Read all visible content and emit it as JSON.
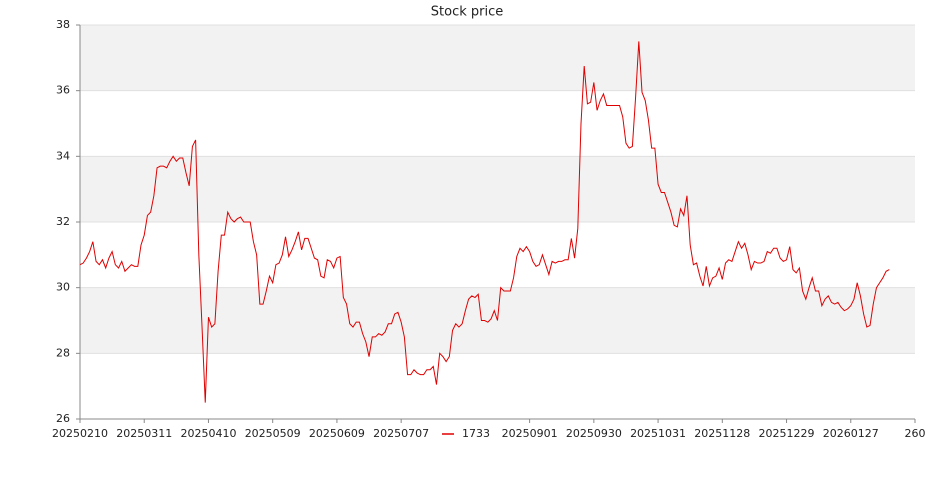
{
  "chart_data": {
    "type": "line",
    "title": "Stock price",
    "xlim": [
      0,
      260
    ],
    "xticks": [
      {
        "value": 0,
        "label": "20250210"
      },
      {
        "value": 20,
        "label": "20250311"
      },
      {
        "value": 40,
        "label": "20250410"
      },
      {
        "value": 60,
        "label": "20250509"
      },
      {
        "value": 80,
        "label": "20250609"
      },
      {
        "value": 100,
        "label": "20250707"
      },
      {
        "value": 140,
        "label": "20250901"
      },
      {
        "value": 160,
        "label": "20250930"
      },
      {
        "value": 180,
        "label": "20251031"
      },
      {
        "value": 200,
        "label": "20251128"
      },
      {
        "value": 220,
        "label": "20251229"
      },
      {
        "value": 240,
        "label": "20260127"
      },
      {
        "value": 260,
        "label": "260"
      }
    ],
    "ylim": [
      26,
      38
    ],
    "yticks": [
      26,
      28,
      30,
      32,
      34,
      36,
      38
    ],
    "grid": true,
    "legend": "bottom",
    "series": [
      {
        "name": "1733",
        "color": "#e00000",
        "values": [
          30.7,
          30.75,
          30.9,
          31.1,
          31.4,
          30.8,
          30.7,
          30.85,
          30.6,
          30.9,
          31.1,
          30.7,
          30.6,
          30.8,
          30.5,
          30.6,
          30.7,
          30.65,
          30.65,
          31.3,
          31.6,
          32.2,
          32.3,
          32.8,
          33.65,
          33.7,
          33.7,
          33.65,
          33.85,
          34.0,
          33.85,
          33.95,
          33.95,
          33.5,
          33.1,
          34.3,
          34.5,
          31.0,
          28.8,
          26.5,
          29.1,
          28.8,
          28.9,
          30.5,
          31.6,
          31.6,
          32.3,
          32.1,
          32.0,
          32.1,
          32.15,
          32.0,
          32.0,
          32.0,
          31.4,
          31.0,
          29.5,
          29.5,
          29.9,
          30.35,
          30.15,
          30.7,
          30.75,
          31.0,
          31.55,
          30.95,
          31.15,
          31.4,
          31.7,
          31.15,
          31.5,
          31.5,
          31.2,
          30.9,
          30.85,
          30.35,
          30.3,
          30.85,
          30.8,
          30.6,
          30.9,
          30.95,
          29.7,
          29.5,
          28.9,
          28.8,
          28.95,
          28.95,
          28.6,
          28.35,
          27.9,
          28.5,
          28.5,
          28.6,
          28.55,
          28.65,
          28.9,
          28.9,
          29.2,
          29.25,
          28.95,
          28.5,
          27.35,
          27.35,
          27.5,
          27.4,
          27.35,
          27.35,
          27.5,
          27.5,
          27.6,
          27.05,
          28.0,
          27.9,
          27.75,
          27.9,
          28.7,
          28.9,
          28.8,
          28.9,
          29.3,
          29.65,
          29.75,
          29.7,
          29.8,
          29.0,
          29.0,
          28.95,
          29.05,
          29.3,
          29.0,
          30.0,
          29.9,
          29.9,
          29.9,
          30.3,
          30.95,
          31.2,
          31.1,
          31.25,
          31.1,
          30.8,
          30.65,
          30.7,
          31.0,
          30.7,
          30.4,
          30.8,
          30.75,
          30.8,
          30.8,
          30.85,
          30.85,
          31.5,
          30.9,
          31.8,
          35.0,
          36.75,
          35.6,
          35.65,
          36.25,
          35.4,
          35.7,
          35.9,
          35.55,
          35.55,
          35.55,
          35.55,
          35.55,
          35.2,
          34.4,
          34.25,
          34.3,
          35.8,
          37.5,
          35.95,
          35.7,
          35.1,
          34.25,
          34.25,
          33.15,
          32.9,
          32.9,
          32.6,
          32.3,
          31.9,
          31.85,
          32.4,
          32.2,
          32.8,
          31.3,
          30.7,
          30.75,
          30.35,
          30.05,
          30.65,
          30.05,
          30.3,
          30.35,
          30.6,
          30.25,
          30.75,
          30.85,
          30.8,
          31.1,
          31.4,
          31.2,
          31.35,
          31.0,
          30.55,
          30.8,
          30.75,
          30.75,
          30.8,
          31.1,
          31.05,
          31.2,
          31.2,
          30.9,
          30.8,
          30.85,
          31.25,
          30.55,
          30.45,
          30.6,
          29.9,
          29.65,
          30.0,
          30.3,
          29.9,
          29.9,
          29.45,
          29.65,
          29.75,
          29.55,
          29.5,
          29.55,
          29.4,
          29.3,
          29.35,
          29.45,
          29.65,
          30.15,
          29.75,
          29.2,
          28.8,
          28.85,
          29.5,
          30.0,
          30.15,
          30.3,
          30.5,
          30.55
        ]
      }
    ]
  }
}
